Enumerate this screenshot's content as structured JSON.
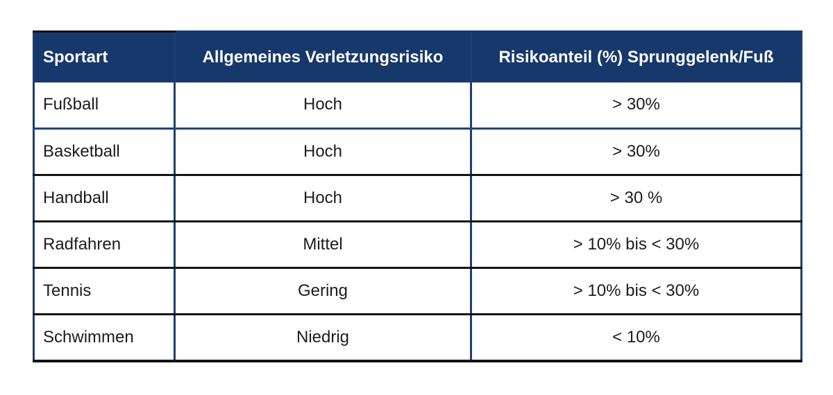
{
  "chart_data": {
    "type": "table",
    "title": "",
    "columns": [
      "Sportart",
      "Allgemeines Verletzungsrisiko",
      "Risikoanteil (%) Sprunggelenk/Fuß"
    ],
    "rows": [
      [
        "Fußball",
        "Hoch",
        "> 30%"
      ],
      [
        "Basketball",
        "Hoch",
        "> 30%"
      ],
      [
        "Handball",
        "Hoch",
        "> 30 %"
      ],
      [
        "Radfahren",
        "Mittel",
        "> 10% bis < 30%"
      ],
      [
        "Tennis",
        "Gering",
        "> 10% bis < 30%"
      ],
      [
        "Schwimmen",
        "Niedrig",
        "< 10%"
      ]
    ]
  },
  "colors": {
    "header_background": "#16386b",
    "header_text": "#ffffff",
    "body_text": "#1c1c1c",
    "divider_navy": "#1d4577",
    "divider_black": "#141414",
    "outer_border_navy": "#1b3f6e"
  }
}
